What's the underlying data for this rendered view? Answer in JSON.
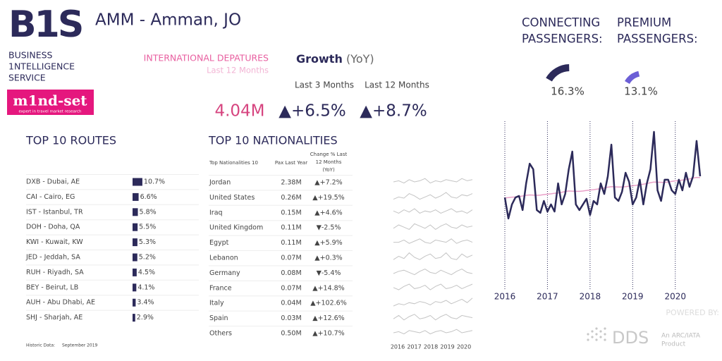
{
  "header": {
    "logo": "B1S",
    "logo_lines": [
      "BUSINESS",
      "1NTELLIGENCE",
      "SERVICE"
    ],
    "partner": "m1nd-set",
    "partner_tagline": "expert in travel market research",
    "title": "AMM - Amman, JO"
  },
  "kpis": {
    "metric": "INTERNATIONAL DEPATURES",
    "period": "Last 12 Months",
    "growth": "Growth",
    "growth_suffix": "(YoY)",
    "col1": "Last 3 Months",
    "col2": "Last 12 Months",
    "total": "4.04M",
    "growth_3m": "▲+6.5%",
    "growth_12m": "▲+8.7%"
  },
  "gauges": [
    {
      "label_lines": [
        "CONNECTING",
        "PASSENGERS:"
      ],
      "value": 16.3,
      "value_label": "16.3%",
      "color": "#2c2a5a"
    },
    {
      "label_lines": [
        "PREMIUM",
        "PASSENGERS:"
      ],
      "value": 13.1,
      "value_label": "13.1%",
      "color": "#6c5fd6"
    }
  ],
  "routes": {
    "title": "TOP 10 ROUTES",
    "color": "#2c2a5a",
    "rows": [
      {
        "name": "DXB - Dubai, AE",
        "share": 10.7,
        "share_label": "10.7%"
      },
      {
        "name": "CAI - Cairo, EG",
        "share": 6.6,
        "share_label": "6.6%"
      },
      {
        "name": "IST - Istanbul, TR",
        "share": 5.8,
        "share_label": "5.8%"
      },
      {
        "name": "DOH - Doha, QA",
        "share": 5.5,
        "share_label": "5.5%"
      },
      {
        "name": "KWI - Kuwait, KW",
        "share": 5.3,
        "share_label": "5.3%"
      },
      {
        "name": "JED - Jeddah, SA",
        "share": 5.2,
        "share_label": "5.2%"
      },
      {
        "name": "RUH - Riyadh, SA",
        "share": 4.5,
        "share_label": "4.5%"
      },
      {
        "name": "BEY - Beirut, LB",
        "share": 4.1,
        "share_label": "4.1%"
      },
      {
        "name": "AUH - Abu Dhabi, AE",
        "share": 3.4,
        "share_label": "3.4%"
      },
      {
        "name": "SHJ - Sharjah, AE",
        "share": 2.9,
        "share_label": "2.9%"
      }
    ]
  },
  "nationalities": {
    "title": "TOP 10 NATIONALITIES",
    "headers": [
      "Top Nationalities 10",
      "Pax Last Year"
    ],
    "change_header": [
      "Change % Last",
      "12 Months",
      "(YoY)"
    ],
    "rows": [
      {
        "name": "Jordan",
        "pax": "2.38M",
        "change": "▲+7.2%",
        "trend": [
          5,
          6,
          4,
          7,
          5,
          6,
          8,
          4,
          6,
          5,
          7,
          6,
          5,
          8,
          6,
          7
        ]
      },
      {
        "name": "United States",
        "pax": "0.26M",
        "change": "▲+19.5%",
        "trend": [
          3,
          5,
          4,
          8,
          6,
          3,
          5,
          7,
          4,
          6,
          9,
          5,
          4,
          7,
          6,
          8
        ]
      },
      {
        "name": "Iraq",
        "pax": "0.15M",
        "change": "▲+4.6%",
        "trend": [
          6,
          4,
          7,
          5,
          8,
          4,
          6,
          5,
          7,
          4,
          6,
          8,
          5,
          6,
          4,
          7
        ]
      },
      {
        "name": "United Kingdom",
        "pax": "0.11M",
        "change": "▼-2.5%",
        "trend": [
          4,
          7,
          5,
          3,
          8,
          6,
          4,
          7,
          3,
          6,
          8,
          5,
          4,
          7,
          5,
          6
        ]
      },
      {
        "name": "Egypt",
        "pax": "0.11M",
        "change": "▲+5.9%",
        "trend": [
          5,
          5,
          7,
          4,
          6,
          8,
          5,
          4,
          7,
          6,
          5,
          8,
          4,
          6,
          7,
          5
        ]
      },
      {
        "name": "Lebanon",
        "pax": "0.07M",
        "change": "▲+0.3%",
        "trend": [
          3,
          6,
          4,
          9,
          5,
          3,
          6,
          8,
          4,
          5,
          9,
          4,
          3,
          8,
          5,
          7
        ]
      },
      {
        "name": "Germany",
        "pax": "0.08M",
        "change": "▼-5.4%",
        "trend": [
          4,
          6,
          7,
          5,
          3,
          6,
          8,
          5,
          4,
          7,
          5,
          3,
          6,
          8,
          5,
          4
        ]
      },
      {
        "name": "France",
        "pax": "0.07M",
        "change": "▲+14.8%",
        "trend": [
          5,
          3,
          6,
          8,
          4,
          5,
          7,
          3,
          6,
          8,
          4,
          5,
          7,
          4,
          6,
          8
        ]
      },
      {
        "name": "Italy",
        "pax": "0.04M",
        "change": "▲+102.6%",
        "trend": [
          2,
          4,
          3,
          5,
          4,
          6,
          5,
          3,
          6,
          5,
          7,
          4,
          6,
          8,
          5,
          9
        ]
      },
      {
        "name": "Spain",
        "pax": "0.03M",
        "change": "▲+12.6%",
        "trend": [
          4,
          7,
          3,
          6,
          8,
          4,
          5,
          7,
          3,
          6,
          8,
          5,
          4,
          7,
          6,
          5
        ]
      },
      {
        "name": "Others",
        "pax": "0.50M",
        "change": "▲+10.7%",
        "trend": [
          5,
          6,
          4,
          7,
          6,
          5,
          7,
          4,
          6,
          7,
          5,
          6,
          8,
          5,
          6,
          7
        ]
      }
    ],
    "trend_ylim": [
      0,
      10
    ],
    "trend_axis": [
      "2016",
      "2017",
      "2018",
      "2019",
      "2020"
    ]
  },
  "chart_data": {
    "type": "line",
    "categories": [
      "2016",
      null,
      null,
      null,
      null,
      null,
      null,
      null,
      null,
      null,
      null,
      null,
      "2017",
      null,
      null,
      null,
      null,
      null,
      null,
      null,
      null,
      null,
      null,
      null,
      "2018",
      null,
      null,
      null,
      null,
      null,
      null,
      null,
      null,
      null,
      null,
      null,
      "2019",
      null,
      null,
      null,
      null,
      null,
      null,
      null,
      null,
      null,
      null,
      null,
      "2020",
      null,
      null,
      null,
      null,
      null,
      null,
      null
    ],
    "ylim": [
      0,
      100
    ],
    "series": [
      {
        "color": "#2c2a5a",
        "values": [
          55.3,
          42.6,
          51.1,
          55.3,
          56.2,
          47.7,
          63.8,
          75.7,
          72.3,
          47.7,
          46,
          53.2,
          46.8,
          51.1,
          46.8,
          63.8,
          51.1,
          57.4,
          72.3,
          83,
          51.1,
          47.7,
          51.1,
          54.5,
          44.7,
          53.2,
          51.1,
          63.8,
          57.4,
          68.1,
          87.2,
          55.3,
          53.2,
          58.7,
          70.2,
          64.7,
          51.1,
          55.3,
          66,
          51.1,
          63.8,
          72.3,
          94.9,
          59.6,
          53.2,
          66,
          66,
          59.6,
          57.4,
          66,
          59.6,
          70.2,
          61.7,
          68.1,
          89.4,
          68.1
        ]
      },
      {
        "color": "#e9a0c8",
        "values": [
          55,
          55.2,
          55.5,
          55.6,
          55.8,
          56.2,
          56.6,
          56.8,
          56.7,
          56.6,
          56.7,
          57,
          57.3,
          57.5,
          57.8,
          58,
          58.4,
          58.9,
          59.2,
          59.1,
          59,
          59,
          59.2,
          59.5,
          59.8,
          60,
          60.3,
          60.6,
          61,
          61.5,
          61.8,
          61.7,
          61.6,
          61.6,
          61.8,
          62.1,
          62.4,
          62.6,
          63,
          63.3,
          63.7,
          64.2,
          64.6,
          64.5,
          64.4,
          64.4,
          64.6,
          65,
          65.3,
          65.5,
          65.8,
          66.1,
          66.5,
          67,
          67.4,
          67.3
        ]
      }
    ]
  },
  "footer": {
    "powered_by": "POWERED BY:",
    "brand": "DDS",
    "brand_lines": [
      "An ARC/IATA",
      "Product"
    ],
    "historic_label": "Historic Data:",
    "historic_date": "September 2019"
  }
}
